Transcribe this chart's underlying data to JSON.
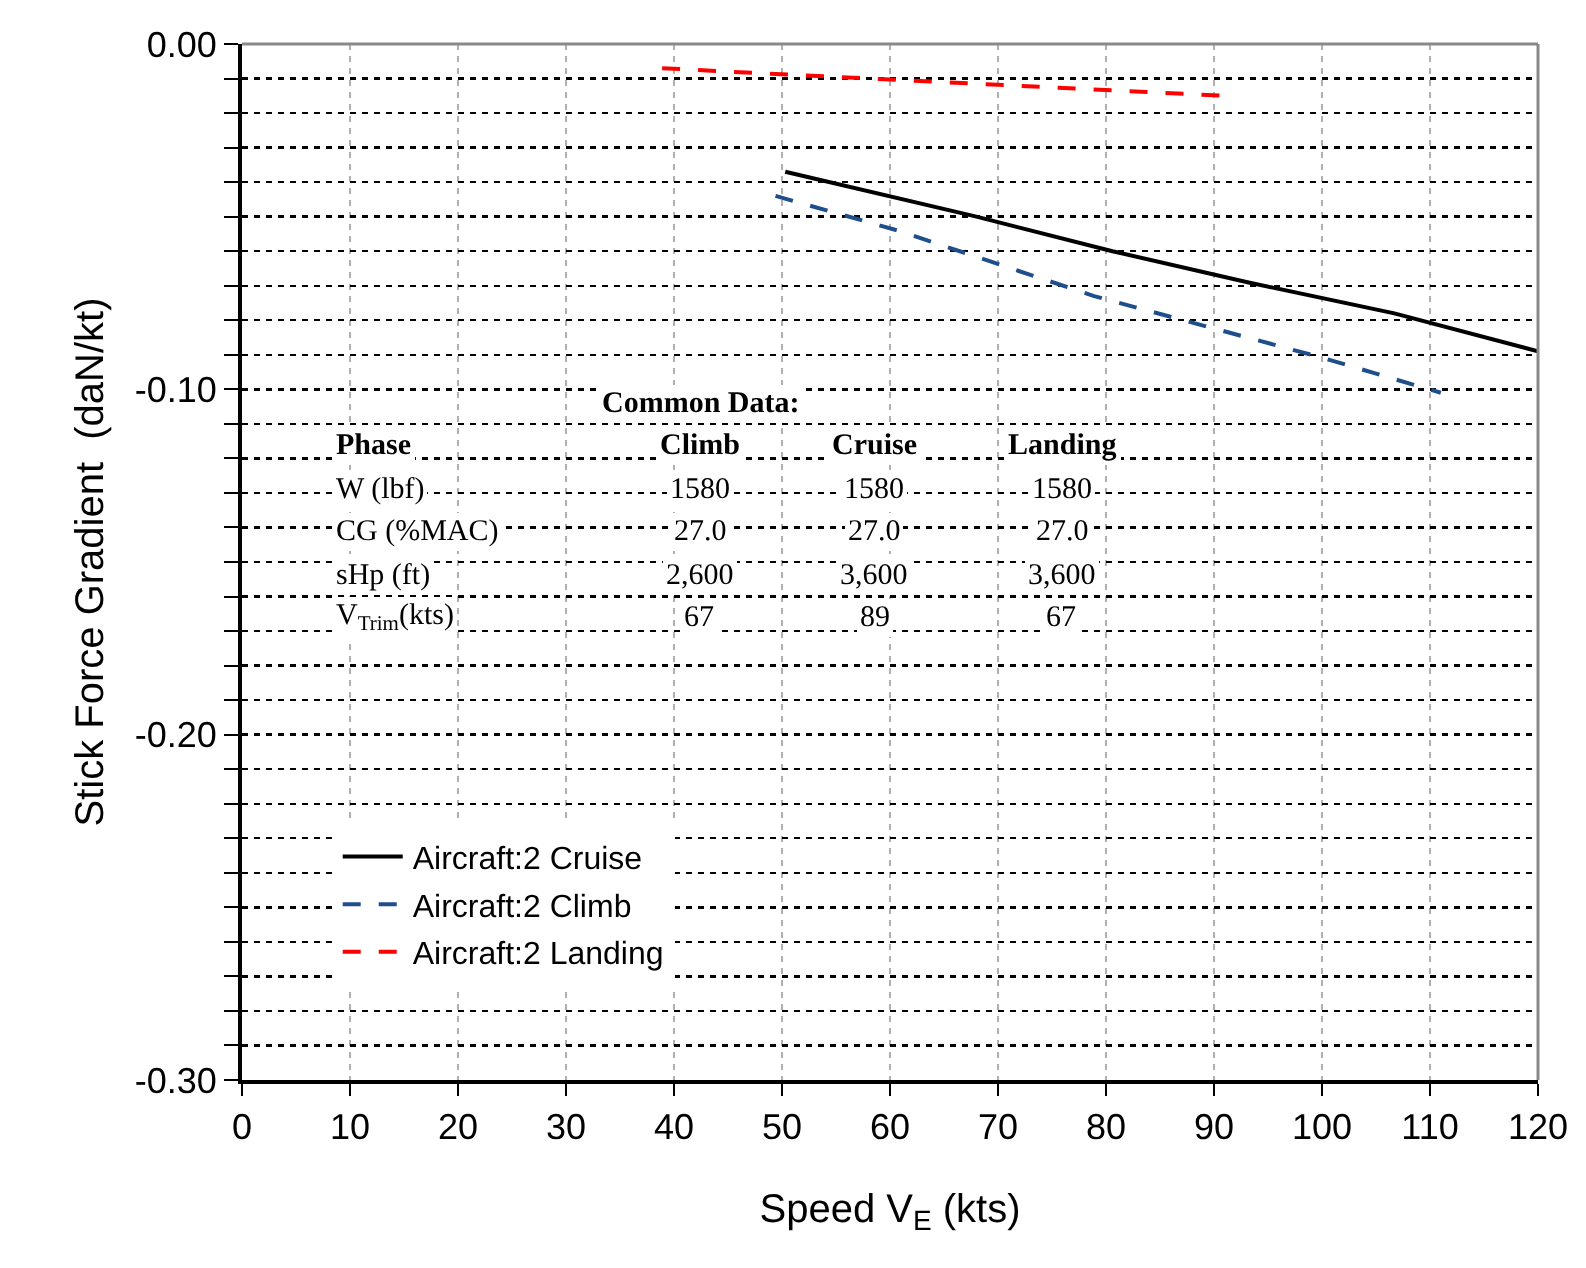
{
  "chart_data": {
    "type": "line",
    "xlabel": "Speed V$_{E}$ (kts)",
    "ylabel": "Stick Force Gradient  (daN/kt)",
    "xlim": [
      0,
      120
    ],
    "xticks": [
      0,
      10,
      20,
      30,
      40,
      50,
      60,
      70,
      80,
      90,
      100,
      110,
      120
    ],
    "ylim": [
      -0.3,
      0
    ],
    "yticks": [
      {
        "value": -0.3,
        "label": "-0.30"
      },
      {
        "value": -0.29,
        "label": null
      },
      {
        "value": -0.28,
        "label": null
      },
      {
        "value": -0.27,
        "label": null
      },
      {
        "value": -0.26,
        "label": null
      },
      {
        "value": -0.25,
        "label": null
      },
      {
        "value": -0.24,
        "label": null
      },
      {
        "value": -0.23,
        "label": null
      },
      {
        "value": -0.22,
        "label": null
      },
      {
        "value": -0.21,
        "label": null
      },
      {
        "value": -0.2,
        "label": "-0.20"
      },
      {
        "value": -0.19,
        "label": null
      },
      {
        "value": -0.18,
        "label": null
      },
      {
        "value": -0.17,
        "label": null
      },
      {
        "value": -0.16,
        "label": null
      },
      {
        "value": -0.15,
        "label": null
      },
      {
        "value": -0.14,
        "label": null
      },
      {
        "value": -0.13,
        "label": null
      },
      {
        "value": -0.12,
        "label": null
      },
      {
        "value": -0.11,
        "label": null
      },
      {
        "value": -0.1,
        "label": "-0.10"
      },
      {
        "value": -0.09,
        "label": null
      },
      {
        "value": -0.08,
        "label": null
      },
      {
        "value": -0.07,
        "label": null
      },
      {
        "value": -0.06,
        "label": null
      },
      {
        "value": -0.05,
        "label": null
      },
      {
        "value": -0.04,
        "label": null
      },
      {
        "value": -0.03,
        "label": null
      },
      {
        "value": -0.02,
        "label": null
      },
      {
        "value": -0.01,
        "label": null
      },
      {
        "value": 0,
        "label": "0.00"
      }
    ],
    "grid": true,
    "legend": "bottom left",
    "marker": "none",
    "series": [
      {
        "name": "Aircraft:2 Cruise",
        "color": "#000000",
        "line_style": "solid",
        "x": [
          50.3,
          68,
          80.6,
          93.1,
          106.7,
          120
        ],
        "values": [
          -0.037,
          -0.05,
          -0.06,
          -0.069,
          -0.078,
          -0.089
        ]
      },
      {
        "name": "Aircraft:2 Climb",
        "color": "#1f4e8c",
        "line_style": "dashed",
        "x": [
          49.4,
          60.7,
          78.9,
          100.2,
          111
        ],
        "values": [
          -0.044,
          -0.054,
          -0.073,
          -0.091,
          -0.101
        ]
      },
      {
        "name": "Aircraft:2 Landing",
        "color": "#ff0000",
        "line_style": "dashed",
        "x": [
          38.9,
          45,
          90.9
        ],
        "values": [
          -0.007,
          -0.008,
          -0.015
        ]
      }
    ],
    "annotations": [
      "Common Data:",
      "Phase",
      "Climb",
      "Cruise",
      "Landing",
      "W (lbf)",
      "1580",
      "1580",
      "1580",
      "CG (%MAC)",
      "27.0",
      "27.0",
      "27.0",
      "sHp (ft)",
      "2,600",
      "3,600",
      "3,600",
      "V$_{Trim}$(kts)",
      "67",
      "89",
      "67"
    ]
  }
}
